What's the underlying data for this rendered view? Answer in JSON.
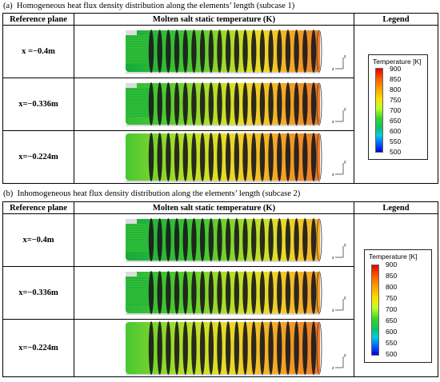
{
  "captions": {
    "a": "(a)  Homogeneous heat flux density distribution along the elements’ length (subcase 1)",
    "b": "(b)  Inhomogeneous heat flux density distribution along the elements’ length (subcase 2)"
  },
  "headers": {
    "reference": "Reference plane",
    "temperature": "Molten salt static temperature (K)",
    "legend": "Legend"
  },
  "subcase1": {
    "rows": [
      "x =−0.4m",
      "x=−0.336m",
      "x=−0.224m"
    ]
  },
  "subcase2": {
    "rows": [
      "x=−0.4m",
      "x=−0.336m",
      "x=−0.224m"
    ]
  },
  "legend": {
    "title": "Temperature [K]",
    "ticks": [
      "900",
      "850",
      "800",
      "750",
      "700",
      "650",
      "600",
      "550",
      "500"
    ]
  },
  "axis_labels": {
    "y": "y",
    "z": "z"
  },
  "colors": {
    "border": "#000000",
    "fin": "#1a1a1a",
    "background": "#ffffff"
  }
}
